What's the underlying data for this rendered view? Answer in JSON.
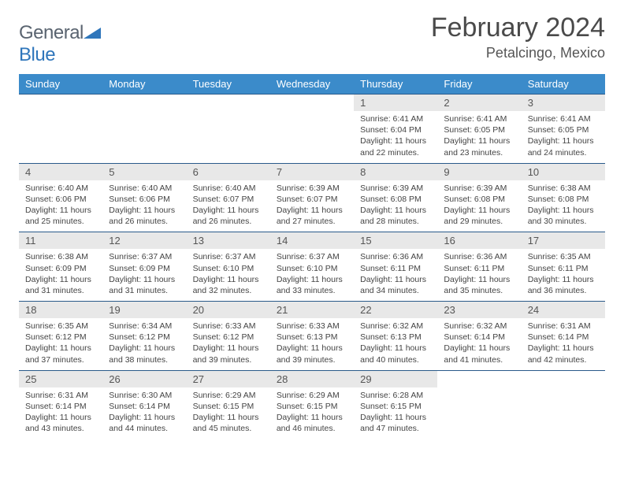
{
  "logo": {
    "part1": "General",
    "part2": "Blue"
  },
  "title": "February 2024",
  "location": "Petalcingo, Mexico",
  "colors": {
    "header_bg": "#3b8bca",
    "header_text": "#ffffff",
    "daynum_bg": "#e8e8e8",
    "border": "#2a5a8a",
    "logo_gray": "#5a6470",
    "logo_blue": "#2f76bb"
  },
  "weekdays": [
    "Sunday",
    "Monday",
    "Tuesday",
    "Wednesday",
    "Thursday",
    "Friday",
    "Saturday"
  ],
  "weeks": [
    [
      null,
      null,
      null,
      null,
      {
        "n": "1",
        "sr": "6:41 AM",
        "ss": "6:04 PM",
        "dl": "11 hours and 22 minutes."
      },
      {
        "n": "2",
        "sr": "6:41 AM",
        "ss": "6:05 PM",
        "dl": "11 hours and 23 minutes."
      },
      {
        "n": "3",
        "sr": "6:41 AM",
        "ss": "6:05 PM",
        "dl": "11 hours and 24 minutes."
      }
    ],
    [
      {
        "n": "4",
        "sr": "6:40 AM",
        "ss": "6:06 PM",
        "dl": "11 hours and 25 minutes."
      },
      {
        "n": "5",
        "sr": "6:40 AM",
        "ss": "6:06 PM",
        "dl": "11 hours and 26 minutes."
      },
      {
        "n": "6",
        "sr": "6:40 AM",
        "ss": "6:07 PM",
        "dl": "11 hours and 26 minutes."
      },
      {
        "n": "7",
        "sr": "6:39 AM",
        "ss": "6:07 PM",
        "dl": "11 hours and 27 minutes."
      },
      {
        "n": "8",
        "sr": "6:39 AM",
        "ss": "6:08 PM",
        "dl": "11 hours and 28 minutes."
      },
      {
        "n": "9",
        "sr": "6:39 AM",
        "ss": "6:08 PM",
        "dl": "11 hours and 29 minutes."
      },
      {
        "n": "10",
        "sr": "6:38 AM",
        "ss": "6:08 PM",
        "dl": "11 hours and 30 minutes."
      }
    ],
    [
      {
        "n": "11",
        "sr": "6:38 AM",
        "ss": "6:09 PM",
        "dl": "11 hours and 31 minutes."
      },
      {
        "n": "12",
        "sr": "6:37 AM",
        "ss": "6:09 PM",
        "dl": "11 hours and 31 minutes."
      },
      {
        "n": "13",
        "sr": "6:37 AM",
        "ss": "6:10 PM",
        "dl": "11 hours and 32 minutes."
      },
      {
        "n": "14",
        "sr": "6:37 AM",
        "ss": "6:10 PM",
        "dl": "11 hours and 33 minutes."
      },
      {
        "n": "15",
        "sr": "6:36 AM",
        "ss": "6:11 PM",
        "dl": "11 hours and 34 minutes."
      },
      {
        "n": "16",
        "sr": "6:36 AM",
        "ss": "6:11 PM",
        "dl": "11 hours and 35 minutes."
      },
      {
        "n": "17",
        "sr": "6:35 AM",
        "ss": "6:11 PM",
        "dl": "11 hours and 36 minutes."
      }
    ],
    [
      {
        "n": "18",
        "sr": "6:35 AM",
        "ss": "6:12 PM",
        "dl": "11 hours and 37 minutes."
      },
      {
        "n": "19",
        "sr": "6:34 AM",
        "ss": "6:12 PM",
        "dl": "11 hours and 38 minutes."
      },
      {
        "n": "20",
        "sr": "6:33 AM",
        "ss": "6:12 PM",
        "dl": "11 hours and 39 minutes."
      },
      {
        "n": "21",
        "sr": "6:33 AM",
        "ss": "6:13 PM",
        "dl": "11 hours and 39 minutes."
      },
      {
        "n": "22",
        "sr": "6:32 AM",
        "ss": "6:13 PM",
        "dl": "11 hours and 40 minutes."
      },
      {
        "n": "23",
        "sr": "6:32 AM",
        "ss": "6:14 PM",
        "dl": "11 hours and 41 minutes."
      },
      {
        "n": "24",
        "sr": "6:31 AM",
        "ss": "6:14 PM",
        "dl": "11 hours and 42 minutes."
      }
    ],
    [
      {
        "n": "25",
        "sr": "6:31 AM",
        "ss": "6:14 PM",
        "dl": "11 hours and 43 minutes."
      },
      {
        "n": "26",
        "sr": "6:30 AM",
        "ss": "6:14 PM",
        "dl": "11 hours and 44 minutes."
      },
      {
        "n": "27",
        "sr": "6:29 AM",
        "ss": "6:15 PM",
        "dl": "11 hours and 45 minutes."
      },
      {
        "n": "28",
        "sr": "6:29 AM",
        "ss": "6:15 PM",
        "dl": "11 hours and 46 minutes."
      },
      {
        "n": "29",
        "sr": "6:28 AM",
        "ss": "6:15 PM",
        "dl": "11 hours and 47 minutes."
      },
      null,
      null
    ]
  ],
  "labels": {
    "sunrise": "Sunrise:",
    "sunset": "Sunset:",
    "daylight": "Daylight:"
  }
}
